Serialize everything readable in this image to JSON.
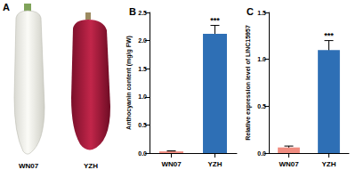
{
  "panel_a": {
    "title": "A",
    "labels": [
      "WN07",
      "YZH"
    ]
  },
  "chart_data": [
    {
      "type": "bar",
      "title": "B",
      "categories": [
        "WN07",
        "YZH"
      ],
      "values": [
        0.03,
        2.12
      ],
      "errors": [
        0.01,
        0.15
      ],
      "colors": [
        "#f08c80",
        "#2e6fb5"
      ],
      "ylabel": "Anthocyanin content (mg/g FW)",
      "ylim": [
        0,
        2.5
      ],
      "yticks": [
        {
          "value": 0,
          "label": "0.0"
        },
        {
          "value": 0.5,
          "label": "0.5"
        },
        {
          "value": 1,
          "label": "1.0"
        },
        {
          "value": 1.5,
          "label": "1.5"
        },
        {
          "value": 2,
          "label": "2.0"
        },
        {
          "value": 2.5,
          "label": "2.5"
        }
      ],
      "annotations": [
        {
          "category": "YZH",
          "text": "***"
        }
      ],
      "grid": false
    },
    {
      "type": "bar",
      "title": "C",
      "categories": [
        "WN07",
        "YZH"
      ],
      "values": [
        0.06,
        1.1
      ],
      "errors": [
        0.015,
        0.1
      ],
      "colors": [
        "#f08c80",
        "#2e6fb5"
      ],
      "ylabel": "Relative expression level of LINC15957",
      "ylim": [
        0,
        1.5
      ],
      "yticks": [
        {
          "value": 0,
          "label": "0.0"
        },
        {
          "value": 0.5,
          "label": "0.5"
        },
        {
          "value": 1,
          "label": "1.0"
        },
        {
          "value": 1.5,
          "label": "1.5"
        }
      ],
      "annotations": [
        {
          "category": "YZH",
          "text": "***"
        }
      ],
      "grid": false
    }
  ]
}
